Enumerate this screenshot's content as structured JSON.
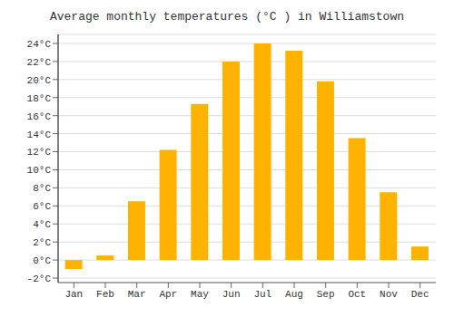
{
  "chart_data": {
    "type": "bar",
    "title": "Average monthly temperatures (°C ) in Williamstown",
    "categories": [
      "Jan",
      "Feb",
      "Mar",
      "Apr",
      "May",
      "Jun",
      "Jul",
      "Aug",
      "Sep",
      "Oct",
      "Nov",
      "Dec"
    ],
    "values": [
      -1.0,
      0.5,
      6.5,
      12.2,
      17.3,
      22.0,
      24.0,
      23.2,
      19.8,
      13.5,
      7.5,
      1.5
    ],
    "color": "#FFB300",
    "ylim": [
      -2.5,
      25.0
    ],
    "yticks": [
      {
        "value": -2,
        "label": "-2°C"
      },
      {
        "value": 0,
        "label": "0°C"
      },
      {
        "value": 2,
        "label": "2°C"
      },
      {
        "value": 4,
        "label": "4°C"
      },
      {
        "value": 6,
        "label": "6°C"
      },
      {
        "value": 8,
        "label": "8°C"
      },
      {
        "value": 10,
        "label": "10°C"
      },
      {
        "value": 12,
        "label": "12°C"
      },
      {
        "value": 14,
        "label": "14°C"
      },
      {
        "value": 16,
        "label": "16°C"
      },
      {
        "value": 18,
        "label": "18°C"
      },
      {
        "value": 20,
        "label": "20°C"
      },
      {
        "value": 22,
        "label": "22°C"
      },
      {
        "value": 24,
        "label": "24°C"
      }
    ],
    "grid": true
  }
}
